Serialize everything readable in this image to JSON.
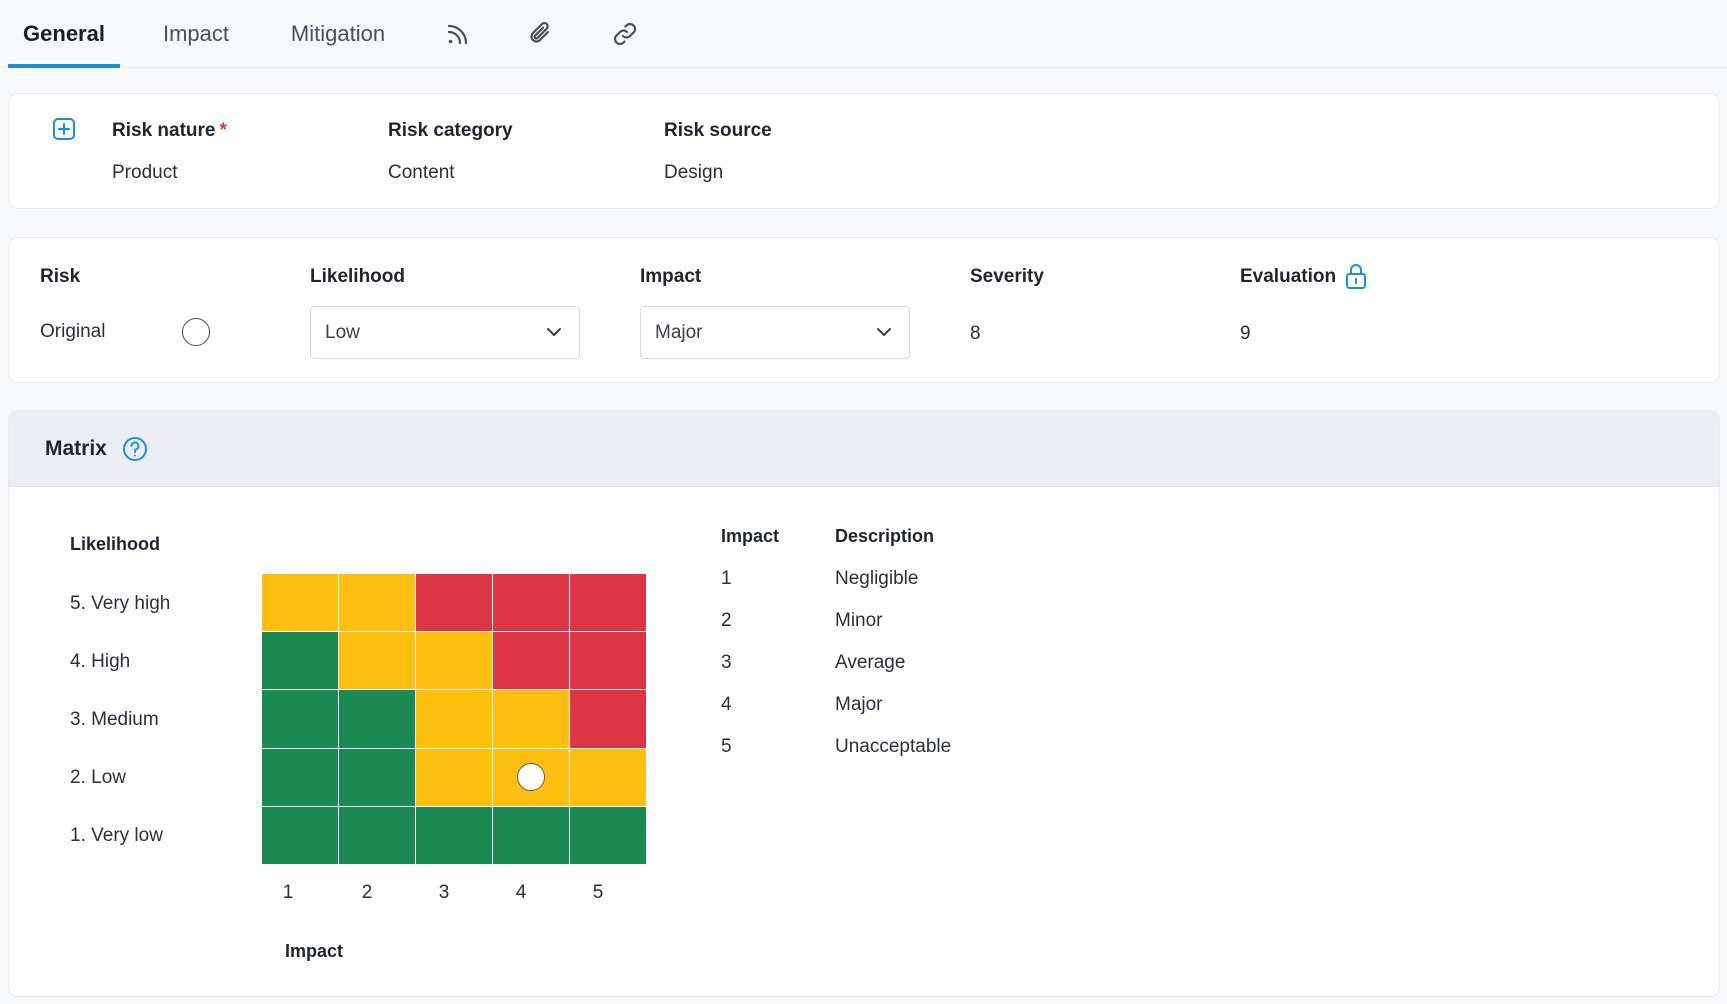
{
  "tabs": [
    {
      "label": "General",
      "active": true
    },
    {
      "label": "Impact",
      "active": false
    },
    {
      "label": "Mitigation",
      "active": false
    }
  ],
  "tab_icons": [
    "rss-feed-icon",
    "paperclip-icon",
    "link-icon"
  ],
  "classification": {
    "add_icon": "plus-square-icon",
    "nature": {
      "label": "Risk nature",
      "required_mark": "*",
      "value": "Product"
    },
    "category": {
      "label": "Risk category",
      "value": "Content"
    },
    "source": {
      "label": "Risk source",
      "value": "Design"
    }
  },
  "risk": {
    "risk_label": "Risk",
    "row_label": "Original",
    "likelihood_label": "Likelihood",
    "likelihood_value": "Low",
    "impact_label": "Impact",
    "impact_value": "Major",
    "severity_label": "Severity",
    "severity_value": "8",
    "evaluation_label": "Evaluation",
    "evaluation_value": "9"
  },
  "matrix": {
    "title": "Matrix",
    "likelihood_axis": "Likelihood",
    "impact_axis": "Impact",
    "rows": [
      "5. Very high",
      "4. High",
      "3. Medium",
      "2. Low",
      "1. Very low"
    ],
    "cols": [
      "1",
      "2",
      "3",
      "4",
      "5"
    ],
    "colors": {
      "green": "#1a8a52",
      "yellow": "#fdc010",
      "red": "#dc3545"
    },
    "cells": [
      [
        "yellow",
        "yellow",
        "red",
        "red",
        "red"
      ],
      [
        "green",
        "yellow",
        "yellow",
        "red",
        "red"
      ],
      [
        "green",
        "green",
        "yellow",
        "yellow",
        "red"
      ],
      [
        "green",
        "green",
        "yellow",
        "yellow",
        "yellow"
      ],
      [
        "green",
        "green",
        "green",
        "green",
        "green"
      ]
    ],
    "marker": {
      "likelihood": 2,
      "impact": 4
    }
  },
  "legend": {
    "impact_header": "Impact",
    "description_header": "Description",
    "items": [
      {
        "n": "1",
        "d": "Negligible"
      },
      {
        "n": "2",
        "d": "Minor"
      },
      {
        "n": "3",
        "d": "Average"
      },
      {
        "n": "4",
        "d": "Major"
      },
      {
        "n": "5",
        "d": "Unacceptable"
      }
    ]
  },
  "accent": "#1a8fe0"
}
